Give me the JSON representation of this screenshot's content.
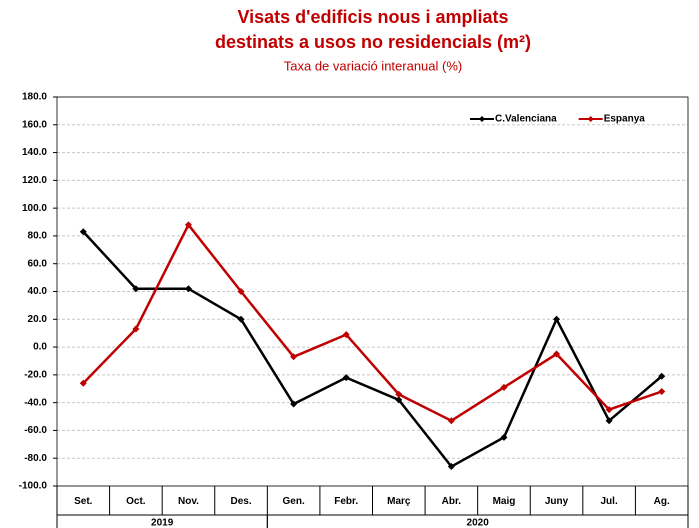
{
  "chart_data": {
    "type": "line",
    "title": [
      "Visats d'edificis nous i ampliats",
      "destinats a usos no residencials (m²)"
    ],
    "subtitle": "Taxa de variació interanual (%)",
    "categories": [
      "Set.",
      "Oct.",
      "Nov.",
      "Des.",
      "Gen.",
      "Febr.",
      "Març",
      "Abr.",
      "Maig",
      "Juny",
      "Jul.",
      "Ag."
    ],
    "year_groups": [
      {
        "label": "2019",
        "count": 4
      },
      {
        "label": "2020",
        "count": 8
      }
    ],
    "series": [
      {
        "name": "C.Valenciana",
        "color": "#000000",
        "values": [
          83,
          42,
          42,
          20,
          -41,
          -22,
          -38,
          -86,
          -65,
          20,
          -53,
          -21
        ]
      },
      {
        "name": "Espanya",
        "color": "#c00000",
        "values": [
          -26,
          13,
          88,
          40,
          -7,
          9,
          -34,
          -53,
          -29,
          -5,
          -45,
          -32
        ]
      }
    ],
    "ylim": [
      -100,
      180
    ],
    "yticks": [
      {
        "value": -100,
        "label": "-100.0"
      },
      {
        "value": -80,
        "label": "-80.0"
      },
      {
        "value": -60,
        "label": "-60.0"
      },
      {
        "value": -40,
        "label": "-40.0"
      },
      {
        "value": -20,
        "label": "-20.0"
      },
      {
        "value": 0,
        "label": "0.0"
      },
      {
        "value": 20,
        "label": "20.0"
      },
      {
        "value": 40,
        "label": "40.0"
      },
      {
        "value": 60,
        "label": "60.0"
      },
      {
        "value": 80,
        "label": "80.0"
      },
      {
        "value": 100,
        "label": "100.0"
      },
      {
        "value": 120,
        "label": "120.0"
      },
      {
        "value": 140,
        "label": "140.0"
      },
      {
        "value": 160,
        "label": "160.0"
      },
      {
        "value": 180,
        "label": "180.0"
      }
    ],
    "grid": true,
    "legend": "upper right"
  }
}
